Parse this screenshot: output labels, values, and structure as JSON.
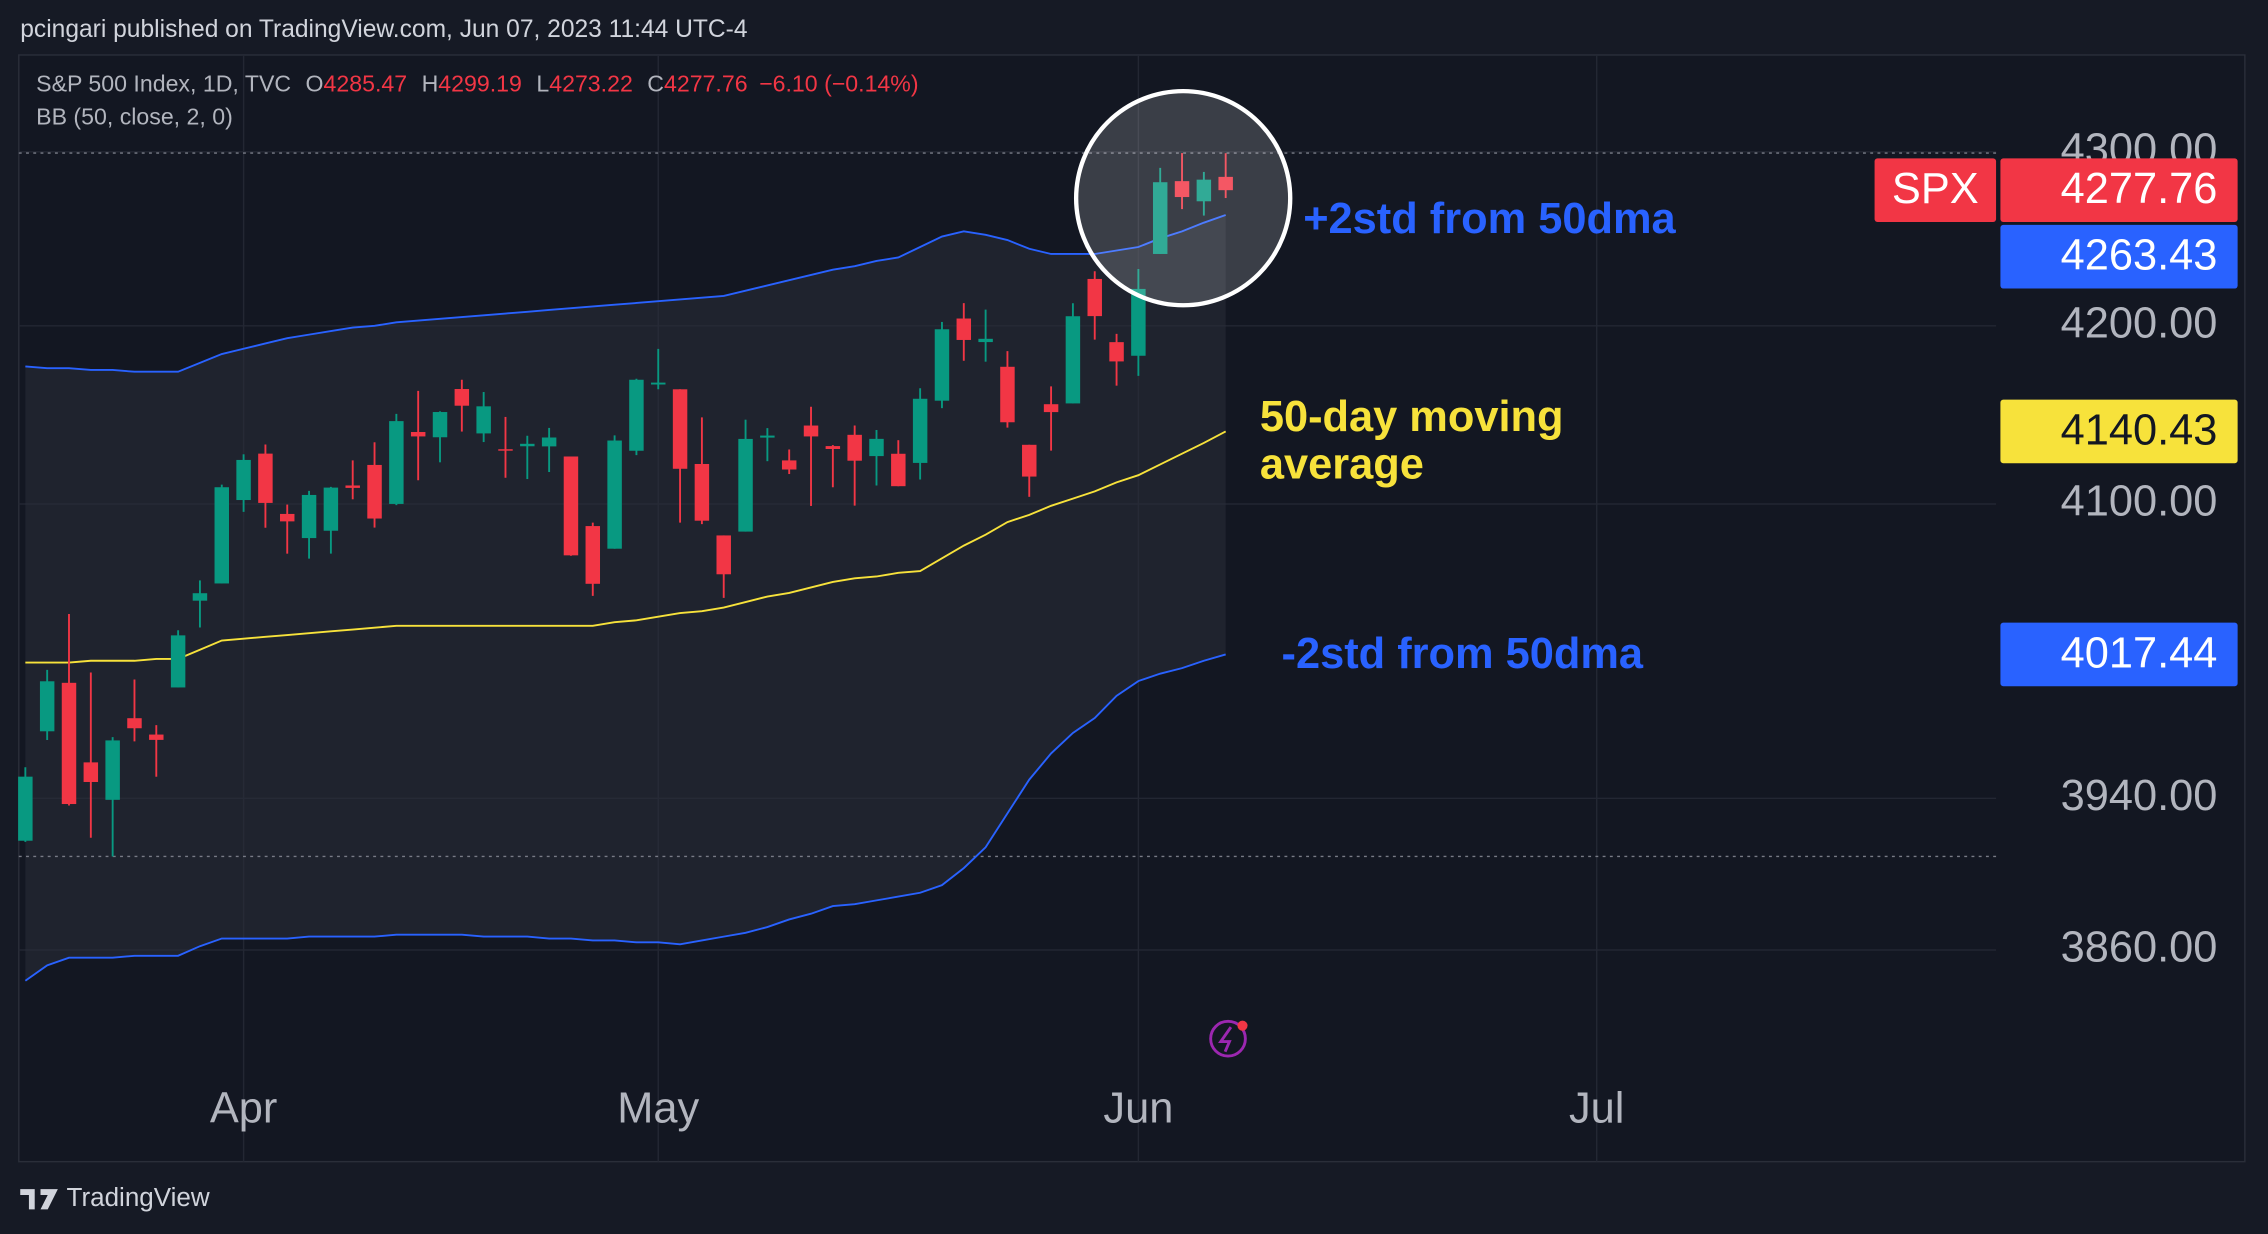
{
  "header": {
    "publisher": "pcingari published on TradingView.com, Jun 07, 2023 11:44 UTC-4",
    "brand": "TradingView"
  },
  "chart_data": {
    "type": "candlestick",
    "symbol": "S&P 500 Index, 1D, TVC",
    "ohlc_letters": [
      "O",
      "H",
      "L",
      "C"
    ],
    "change": "−6.10 (−0.14%)",
    "indicator": "BB (50, close, 2, 0)",
    "ticker": "SPX",
    "up_color": "#089981",
    "down_color": "#f23645",
    "open": [
      3917.47,
      3975.89,
      4002.04,
      3959.21,
      3939.21,
      3982.93,
      3974.13,
      3999.53,
      4046.74,
      4056.18,
      4102.2,
      4128.03,
      4094.5,
      4081.15,
      4085.2,
      4110.29,
      4121.72,
      4100.04,
      4140.11,
      4137.17,
      4164.26,
      4139.33,
      4130.48,
      4132.14,
      4132.07,
      4126.43,
      4087.78,
      4075.29,
      4129.63,
      4166.79,
      4164.1,
      4122.25,
      4082.61,
      4084.73,
      4136.98,
      4124.25,
      4143.74,
      4132.24,
      4138.54,
      4126.65,
      4127.95,
      4122.85,
      4157.68,
      4204.15,
      4190.78,
      4176.8,
      4132.96,
      4155.71,
      4156.16,
      4226.71,
      4190.74,
      4183.03,
      4241.01,
      4282.99,
      4271.34,
      4285.47
    ],
    "high": [
      3956.62,
      4009.08,
      4039.49,
      4007.66,
      3972.74,
      4003.83,
      3979.2,
      4030.59,
      4057.85,
      4110.75,
      4127.66,
      4133.13,
      4099.69,
      4107.32,
      4109.5,
      4124.26,
      4134.37,
      4150.26,
      4163.19,
      4151.72,
      4169.48,
      4162.57,
      4148.57,
      4138.02,
      4142.41,
      4126.43,
      4089.67,
      4138.24,
      4170.06,
      4186.92,
      4164.1,
      4148.3,
      4082.61,
      4147.02,
      4142.3,
      4130.35,
      4154.28,
      4132.8,
      4143.74,
      4141.25,
      4135.54,
      4164.67,
      4202.2,
      4212.91,
      4209.22,
      4185.68,
      4132.96,
      4165.74,
      4212.87,
      4231.1,
      4195.44,
      4232.43,
      4290.67,
      4299.28,
      4288.33,
      4299.19
    ],
    "low": [
      3916.89,
      3971.19,
      3936.17,
      3919.05,
      3909.16,
      3970.47,
      3951.53,
      3999.53,
      4032.1,
      4056.18,
      4095.64,
      4086.87,
      4072.56,
      4069.84,
      4072.55,
      4102.61,
      4086.94,
      4099.4,
      4113.2,
      4123.18,
      4140.36,
      4134.49,
      4114.57,
      4113.86,
      4117.77,
      4071.38,
      4049.35,
      4075.29,
      4127.18,
      4164.12,
      4089.72,
      4088.86,
      4048.28,
      4084.73,
      4123.81,
      4116.65,
      4098.92,
      4109.29,
      4099.12,
      4110.27,
      4109.86,
      4113.62,
      4153.5,
      4180.2,
      4179.68,
      4142.54,
      4103.98,
      4129.73,
      4156.16,
      4192.18,
      4166.15,
      4171.64,
      4241.01,
      4266.82,
      4263.09,
      4273.22
    ],
    "close": [
      3951.57,
      4002.87,
      3936.97,
      3948.72,
      3970.99,
      3977.53,
      3971.27,
      4027.81,
      4050.83,
      4109.31,
      4124.51,
      4100.6,
      4090.38,
      4105.02,
      4109.11,
      4108.94,
      4091.95,
      4146.22,
      4137.64,
      4151.32,
      4154.87,
      4154.52,
      4129.79,
      4133.52,
      4137.04,
      4071.63,
      4055.99,
      4135.35,
      4169.48,
      4167.87,
      4119.58,
      4090.75,
      4061.22,
      4136.25,
      4138.12,
      4119.17,
      4137.64,
      4130.62,
      4124.08,
      4136.28,
      4109.9,
      4158.77,
      4198.05,
      4191.98,
      4192.63,
      4145.58,
      4115.24,
      4151.28,
      4205.45,
      4205.52,
      4179.83,
      4221.02,
      4282.37,
      4273.79,
      4283.85,
      4277.76
    ],
    "series": [
      {
        "annotation": "+2std from 50dma",
        "color": "#2962ff",
        "values": [
          4177,
          4176,
          4176,
          4175,
          4175,
          4174,
          4174,
          4174,
          4179,
          4184,
          4187,
          4190,
          4193,
          4195,
          4197,
          4199,
          4200,
          4202,
          4203,
          4204,
          4205,
          4206,
          4207,
          4208,
          4209,
          4210,
          4211,
          4212,
          4213,
          4214,
          4215,
          4216,
          4217,
          4220,
          4223,
          4226,
          4229,
          4232,
          4234,
          4237,
          4239,
          4245,
          4251,
          4254,
          4252,
          4249,
          4244,
          4241,
          4241,
          4241,
          4243,
          4245,
          4250,
          4254,
          4259,
          4263.43
        ]
      },
      {
        "annotation": [
          "50-day moving",
          "average"
        ],
        "color": "#f7e23b",
        "values": [
          4013,
          4013,
          4013,
          4014,
          4014,
          4014,
          4015,
          4015,
          4020,
          4025,
          4026,
          4027,
          4028,
          4029,
          4030,
          4031,
          4032,
          4033,
          4033,
          4033,
          4033,
          4033,
          4033,
          4033,
          4033,
          4033,
          4033,
          4035,
          4036,
          4038,
          4040,
          4041,
          4043,
          4046,
          4049,
          4051,
          4054,
          4057,
          4059,
          4060,
          4062,
          4063,
          4070,
          4077,
          4083,
          4090,
          4094,
          4099,
          4103,
          4107,
          4112,
          4116,
          4122,
          4128,
          4134,
          4140.43
        ]
      },
      {
        "annotation": "-2std from 50dma",
        "color": "#2962ff",
        "values": [
          3844,
          3852,
          3856,
          3856,
          3856,
          3857,
          3857,
          3857,
          3862,
          3866,
          3866,
          3866,
          3866,
          3867,
          3867,
          3867,
          3867,
          3868,
          3868,
          3868,
          3868,
          3867,
          3867,
          3867,
          3866,
          3866,
          3865,
          3865,
          3864,
          3864,
          3863,
          3865,
          3867,
          3869,
          3872,
          3876,
          3879,
          3883,
          3884,
          3886,
          3888,
          3890,
          3894,
          3903,
          3914,
          3932,
          3950,
          3964,
          3975,
          3983,
          3995,
          4003,
          4007,
          4010,
          4014,
          4017.44
        ]
      }
    ],
    "band_fill": "#2a2e39",
    "xlim": [
      -0.3,
      90.3
    ],
    "xticks": [
      {
        "value": 10,
        "label": "Apr"
      },
      {
        "value": 29,
        "label": "May"
      },
      {
        "value": 51,
        "label": "Jun"
      },
      {
        "value": 72,
        "label": "Jul"
      }
    ],
    "ylim": [
      3797.6,
      4356.7
    ],
    "log_scale": true,
    "yticks": [
      {
        "value": 3860,
        "label": "3860.00"
      },
      {
        "value": 3940,
        "label": "3940.00"
      },
      {
        "value": 4100,
        "label": "4100.00"
      },
      {
        "value": 4200,
        "label": "4200.00"
      },
      {
        "value": 4300,
        "label": "4300.00"
      }
    ],
    "grid": true
  }
}
